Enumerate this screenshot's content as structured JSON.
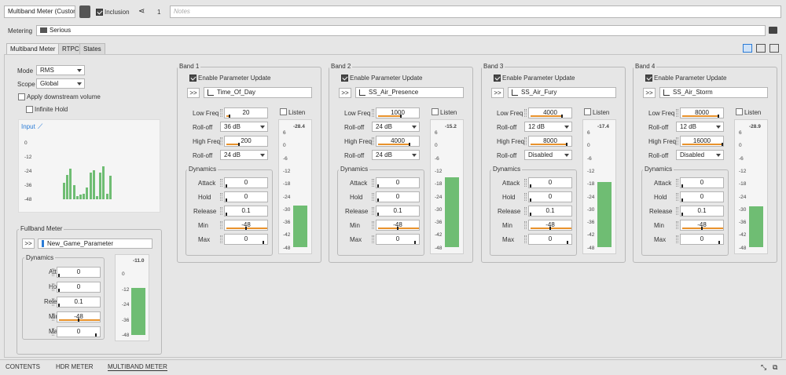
{
  "header": {
    "title": "Multiband Meter (Custom)",
    "inclusion_label": "Inclusion",
    "share_count": "1",
    "notes_placeholder": "Notes"
  },
  "metering": {
    "label": "Metering",
    "value": "Serious"
  },
  "tabs": [
    "Multiband Meter",
    "RTPC",
    "States"
  ],
  "left": {
    "mode_label": "Mode",
    "mode_value": "RMS",
    "scope_label": "Scope",
    "scope_value": "Global",
    "apply_downstream": "Apply downstream volume",
    "infinite_hold": "Infinite Hold",
    "input_label": "Input",
    "input_scale": [
      "0",
      "-12",
      "-24",
      "-36",
      "-48"
    ],
    "input_bars": [
      -34,
      -27,
      -22,
      -36,
      -45,
      -44,
      -43,
      -38,
      -25,
      -23,
      -45,
      -25,
      -20,
      -43,
      -28
    ]
  },
  "fullband": {
    "title": "Fullband Meter",
    "rtpc": "New_Game_Parameter",
    "dynamics_title": "Dynamics",
    "attack_label": "Attack",
    "attack": "0",
    "hold_label": "Hold",
    "hold": "0",
    "release_label": "Release",
    "release": "0.1",
    "min_label": "Min",
    "min": "-48",
    "max_label": "Max",
    "max": "0",
    "meter_value": "-11.0",
    "meter_level": -11.0,
    "scale": [
      "0",
      "-12",
      "-24",
      "-36",
      "-48"
    ]
  },
  "bands": [
    {
      "title": "Band 1",
      "enable": "Enable Parameter Update",
      "rtpc": "Time_Of_Day",
      "low_freq": "20",
      "low_level": 0.05,
      "rolloff1": "36 dB",
      "high_freq": "200",
      "high_level": 0.3,
      "rolloff2": "24 dB",
      "meter_value": "-28.4",
      "meter_level": -28.4
    },
    {
      "title": "Band 2",
      "enable": "Enable Parameter Update",
      "rtpc": "SS_Air_Presence",
      "low_freq": "1000",
      "low_level": 0.55,
      "rolloff1": "24 dB",
      "high_freq": "4000",
      "high_level": 0.78,
      "rolloff2": "24 dB",
      "meter_value": "-15.2",
      "meter_level": -15.2
    },
    {
      "title": "Band 3",
      "enable": "Enable Parameter Update",
      "rtpc": "SS_Air_Fury",
      "low_freq": "4000",
      "low_level": 0.78,
      "rolloff1": "12 dB",
      "high_freq": "8000",
      "high_level": 0.9,
      "rolloff2": "Disabled",
      "meter_value": "-17.4",
      "meter_level": -17.4
    },
    {
      "title": "Band 4",
      "enable": "Enable Parameter Update",
      "rtpc": "SS_Air_Storm",
      "low_freq": "8000",
      "low_level": 0.9,
      "rolloff1": "12 dB",
      "high_freq": "16000",
      "high_level": 1.0,
      "rolloff2": "Disabled",
      "meter_value": "-28.9",
      "meter_level": -28.9
    }
  ],
  "band_common": {
    "low_freq_label": "Low Freq",
    "rolloff_label": "Roll-off",
    "high_freq_label": "High Freq",
    "listen": "Listen",
    "dynamics": "Dynamics",
    "attack_label": "Attack",
    "attack": "0",
    "hold_label": "Hold",
    "hold": "0",
    "release_label": "Release",
    "release": "0.1",
    "min_label": "Min",
    "min": "-48",
    "max_label": "Max",
    "max": "0",
    "scale": [
      "6",
      "0",
      "-6",
      "-12",
      "-18",
      "-24",
      "-30",
      "-36",
      "-42",
      "-48"
    ]
  },
  "bottom_tabs": [
    "CONTENTS",
    "HDR METER",
    "MULTIBAND METER"
  ],
  "colors": {
    "accent": "#e8922c",
    "meter": "#6fbd73",
    "input_bars": "#6fbd73",
    "link_blue": "#2a7bd6"
  }
}
